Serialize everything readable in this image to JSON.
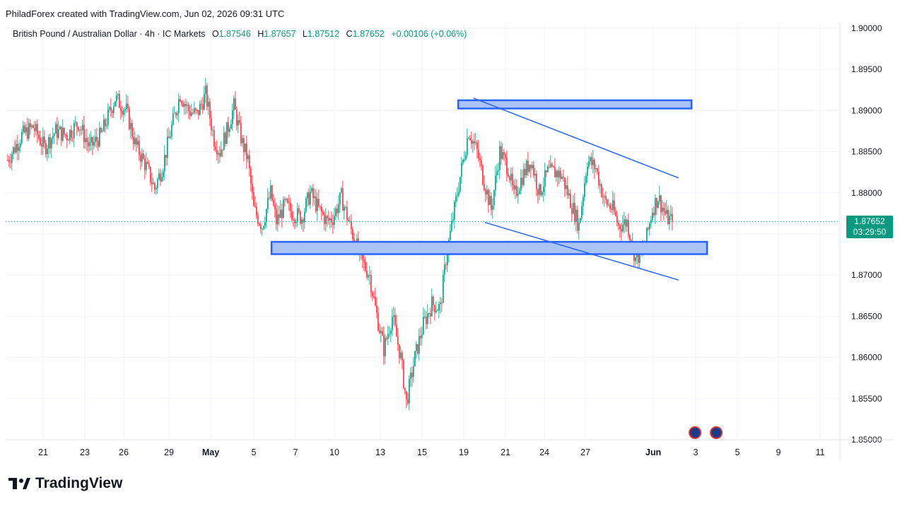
{
  "credit": "PhiladForex created with TradingView.com, Jun 02, 2026 09:31 UTC",
  "legend": {
    "symbol": "British Pound / Australian Dollar · 4h · IC Markets",
    "o_label": "O",
    "o": "1.87546",
    "h_label": "H",
    "h": "1.87657",
    "l_label": "L",
    "l": "1.87512",
    "c_label": "C",
    "c": "1.87652",
    "change": "+0.00106 (+0.06%)"
  },
  "price_tag": {
    "price": "1.87652",
    "countdown": "03:29:50"
  },
  "brand": "TradingView",
  "colors": {
    "up": "#089981",
    "down": "#f23645",
    "zone_fill": "#a9c4f5",
    "zone_border": "#2962ff",
    "trendline": "#2962ff",
    "grid": "#f0f3fa"
  },
  "icons": {
    "flag_1": "australia-flag-icon",
    "flag_2": "australia-flag-icon"
  },
  "chart_data": {
    "type": "candlestick",
    "ylim": [
      1.85,
      1.9
    ],
    "y_ticks": [
      "1.90000",
      "1.89500",
      "1.89000",
      "1.88500",
      "1.88000",
      "1.87500",
      "1.87000",
      "1.86500",
      "1.86000",
      "1.85500",
      "1.85000"
    ],
    "x_ticks": [
      "21",
      "23",
      "26",
      "29",
      "May",
      "5",
      "7",
      "10",
      "13",
      "15",
      "19",
      "21",
      "24",
      "27",
      "Jun",
      "3",
      "5",
      "9",
      "11"
    ],
    "current_price": 1.87652,
    "path_points": [
      [
        0,
        1.884
      ],
      [
        10,
        1.887
      ],
      [
        18,
        1.888
      ],
      [
        26,
        1.8855
      ],
      [
        34,
        1.8875
      ],
      [
        42,
        1.887
      ],
      [
        50,
        1.8885
      ],
      [
        58,
        1.8855
      ],
      [
        66,
        1.887
      ],
      [
        76,
        1.8915
      ],
      [
        84,
        1.89
      ],
      [
        90,
        1.886
      ],
      [
        98,
        1.8832
      ],
      [
        104,
        1.8805
      ],
      [
        110,
        1.8835
      ],
      [
        116,
        1.888
      ],
      [
        122,
        1.892
      ],
      [
        128,
        1.89
      ],
      [
        134,
        1.8895
      ],
      [
        140,
        1.892
      ],
      [
        146,
        1.8865
      ],
      [
        150,
        1.885
      ],
      [
        156,
        1.888
      ],
      [
        160,
        1.8905
      ],
      [
        166,
        1.886
      ],
      [
        170,
        1.884
      ],
      [
        174,
        1.878
      ],
      [
        180,
        1.876
      ],
      [
        186,
        1.88
      ],
      [
        190,
        1.8765
      ],
      [
        196,
        1.8785
      ],
      [
        202,
        1.8775
      ],
      [
        208,
        1.877
      ],
      [
        214,
        1.88
      ],
      [
        220,
        1.878
      ],
      [
        226,
        1.8765
      ],
      [
        230,
        1.877
      ],
      [
        236,
        1.8795
      ],
      [
        242,
        1.876
      ],
      [
        246,
        1.874
      ],
      [
        250,
        1.8718
      ],
      [
        256,
        1.87
      ],
      [
        260,
        1.866
      ],
      [
        266,
        1.861
      ],
      [
        272,
        1.865
      ],
      [
        278,
        1.86
      ],
      [
        282,
        1.8545
      ],
      [
        288,
        1.86
      ],
      [
        294,
        1.864
      ],
      [
        300,
        1.8665
      ],
      [
        306,
        1.866
      ],
      [
        310,
        1.872
      ],
      [
        314,
        1.876
      ],
      [
        320,
        1.882
      ],
      [
        326,
        1.8875
      ],
      [
        332,
        1.885
      ],
      [
        336,
        1.882
      ],
      [
        342,
        1.878
      ],
      [
        348,
        1.885
      ],
      [
        354,
        1.883
      ],
      [
        358,
        1.8795
      ],
      [
        364,
        1.882
      ],
      [
        370,
        1.884
      ],
      [
        376,
        1.88
      ],
      [
        382,
        1.8825
      ],
      [
        388,
        1.8825
      ],
      [
        392,
        1.882
      ],
      [
        398,
        1.879
      ],
      [
        404,
        1.876
      ],
      [
        410,
        1.884
      ],
      [
        416,
        1.883
      ],
      [
        422,
        1.879
      ],
      [
        428,
        1.878
      ],
      [
        432,
        1.876
      ],
      [
        438,
        1.8765
      ],
      [
        444,
        1.872
      ],
      [
        450,
        1.873
      ],
      [
        456,
        1.878
      ],
      [
        460,
        1.8795
      ],
      [
        466,
        1.877
      ],
      [
        470,
        1.8765
      ]
    ],
    "annotations": [
      {
        "type": "zone",
        "y_top": 1.89125,
        "y_bottom": 1.89025,
        "x_start": 319,
        "x_end": 484
      },
      {
        "type": "zone",
        "y_top": 1.87405,
        "y_bottom": 1.87255,
        "x_start": 187,
        "x_end": 495
      },
      {
        "type": "trendline",
        "from": [
          330,
          1.8915
        ],
        "to": [
          475,
          1.8818
        ]
      },
      {
        "type": "trendline",
        "from": [
          338,
          1.8764
        ],
        "to": [
          475,
          1.8694
        ]
      }
    ]
  }
}
